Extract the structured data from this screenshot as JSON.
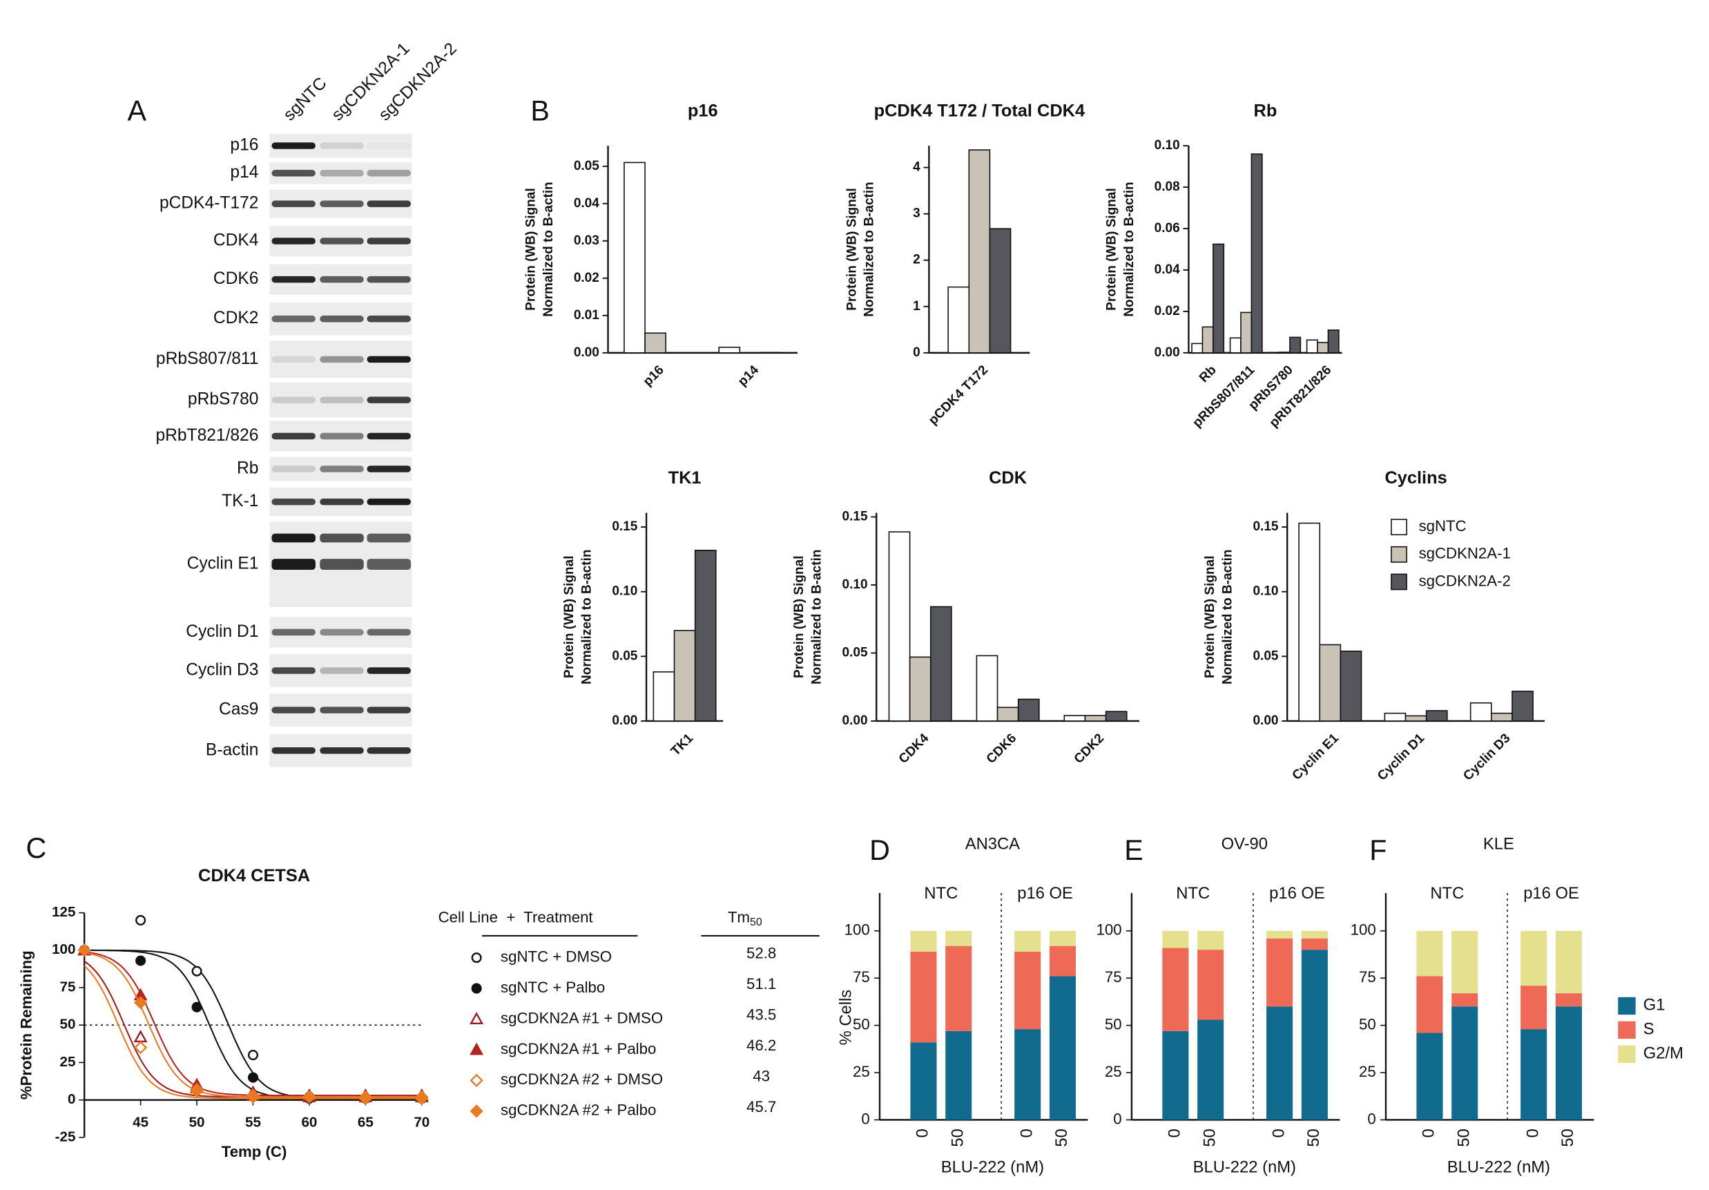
{
  "panel_labels": [
    "A",
    "B",
    "C",
    "D",
    "E",
    "F"
  ],
  "blot": {
    "lanes": [
      "sgNTC",
      "sgCDKN2A-1",
      "sgCDKN2A-2"
    ],
    "proteins": [
      "p16",
      "p14",
      "pCDK4-T172",
      "CDK4",
      "CDK6",
      "CDK2",
      "pRbS807/811",
      "pRbS780",
      "pRbT821/826",
      "Rb",
      "TK-1",
      "Cyclin E1",
      "Cyclin D1",
      "Cyclin D3",
      "Cas9",
      "B-actin"
    ]
  },
  "chart_data": [
    {
      "type": "bar",
      "title": "p16",
      "ylabel": [
        "Protein (WB) Signal",
        "Normalized to B-actin"
      ],
      "categories": [
        "p16",
        "p14"
      ],
      "series": [
        {
          "color": "#ffffff",
          "values": [
            0.051,
            0.0015
          ]
        },
        {
          "color": "#c9c2b7",
          "values": [
            0.0053,
            0
          ]
        },
        {
          "color": "#55575c",
          "values": [
            0,
            0.0001
          ]
        }
      ],
      "ylim": [
        0,
        0.0555
      ],
      "yticks": [
        {
          "value": 0,
          "label": "0.00"
        },
        {
          "value": 0.01,
          "label": "0.01"
        },
        {
          "value": 0.02,
          "label": "0.02"
        },
        {
          "value": 0.03,
          "label": "0.03"
        },
        {
          "value": 0.04,
          "label": "0.04"
        },
        {
          "value": 0.05,
          "label": "0.05"
        }
      ]
    },
    {
      "type": "bar",
      "title": "pCDK4 T172 / Total CDK4",
      "ylabel": [
        "Protein (WB) Signal",
        "Normalized to B-actin"
      ],
      "categories": [
        "pCDK4 T172"
      ],
      "series": [
        {
          "color": "#ffffff",
          "values": [
            1.42
          ]
        },
        {
          "color": "#c9c2b7",
          "values": [
            4.38
          ]
        },
        {
          "color": "#55575c",
          "values": [
            2.68
          ]
        }
      ],
      "ylim": [
        0,
        4.47
      ],
      "yticks": [
        0,
        1,
        2,
        3,
        4
      ]
    },
    {
      "type": "bar",
      "title": "Rb",
      "ylabel": [
        "Protein (WB) Signal",
        "Normalized to B-actin"
      ],
      "categories": [
        "Rb",
        "pRbS807/811",
        "pRbS780",
        "pRbT821/826"
      ],
      "series": [
        {
          "color": "#ffffff",
          "values": [
            0.0045,
            0.0072,
            0.0002,
            0.0062
          ]
        },
        {
          "color": "#c9c2b7",
          "values": [
            0.0125,
            0.0195,
            0.0003,
            0.005
          ]
        },
        {
          "color": "#55575c",
          "values": [
            0.0525,
            0.096,
            0.0075,
            0.011
          ]
        }
      ],
      "ylim": [
        0,
        0.1
      ],
      "yticks": [
        {
          "value": 0,
          "label": "0.00"
        },
        {
          "value": 0.02,
          "label": "0.02"
        },
        {
          "value": 0.04,
          "label": "0.04"
        },
        {
          "value": 0.06,
          "label": "0.06"
        },
        {
          "value": 0.08,
          "label": "0.08"
        },
        {
          "value": 0.1,
          "label": "0.10"
        }
      ]
    },
    {
      "type": "bar",
      "title": "TK1",
      "ylabel": [
        "Protein (WB) Signal",
        "Normalized to B-actin"
      ],
      "categories": [
        "TK1"
      ],
      "series": [
        {
          "color": "#ffffff",
          "values": [
            0.038
          ]
        },
        {
          "color": "#c9c2b7",
          "values": [
            0.07
          ]
        },
        {
          "color": "#55575c",
          "values": [
            0.132
          ]
        }
      ],
      "ylim": [
        0,
        0.161
      ],
      "yticks": [
        {
          "value": 0,
          "label": "0.00"
        },
        {
          "value": 0.05,
          "label": "0.05"
        },
        {
          "value": 0.1,
          "label": "0.10"
        },
        {
          "value": 0.15,
          "label": "0.15"
        }
      ]
    },
    {
      "type": "bar",
      "title": "CDK",
      "ylabel": [
        "Protein (WB) Signal",
        "Normalized to B-actin"
      ],
      "categories": [
        "CDK4",
        "CDK6",
        "CDK2"
      ],
      "series": [
        {
          "color": "#ffffff",
          "values": [
            0.139,
            0.048,
            0.004
          ]
        },
        {
          "color": "#c9c2b7",
          "values": [
            0.047,
            0.01,
            0.004
          ]
        },
        {
          "color": "#55575c",
          "values": [
            0.084,
            0.016,
            0.007
          ]
        }
      ],
      "ylim": [
        0,
        0.153
      ],
      "yticks": [
        {
          "value": 0,
          "label": "0.00"
        },
        {
          "value": 0.05,
          "label": "0.05"
        },
        {
          "value": 0.1,
          "label": "0.10"
        },
        {
          "value": 0.15,
          "label": "0.15"
        }
      ]
    },
    {
      "type": "bar",
      "title": "Cyclins",
      "ylabel": [
        "Protein (WB) Signal",
        "Normalized to B-actin"
      ],
      "categories": [
        "Cyclin E1",
        "Cyclin D1",
        "Cyclin D3"
      ],
      "legend": "upper right",
      "series": [
        {
          "name": "sgNTC",
          "color": "#ffffff",
          "values": [
            0.153,
            0.006,
            0.014
          ]
        },
        {
          "name": "sgCDKN2A-1",
          "color": "#c9c2b7",
          "values": [
            0.059,
            0.004,
            0.006
          ]
        },
        {
          "name": "sgCDKN2A-2",
          "color": "#55575c",
          "values": [
            0.054,
            0.008,
            0.023
          ]
        }
      ],
      "ylim": [
        0,
        0.161
      ],
      "yticks": [
        {
          "value": 0,
          "label": "0.00"
        },
        {
          "value": 0.05,
          "label": "0.05"
        },
        {
          "value": 0.1,
          "label": "0.10"
        },
        {
          "value": 0.15,
          "label": "0.15"
        }
      ]
    },
    {
      "type": "line",
      "title": "CDK4 CETSA",
      "xlabel": "Temp (C)",
      "ylabel": "%Protein Remaining",
      "x": [
        40,
        45,
        50,
        55,
        60,
        65,
        70
      ],
      "xlim": [
        40,
        70
      ],
      "xticks": [
        45,
        50,
        55,
        60,
        65,
        70
      ],
      "ylim": [
        -25,
        125
      ],
      "yticks": [
        125,
        100,
        75,
        50,
        25,
        0,
        -25
      ],
      "hline": 50,
      "legend_header": "Cell Line  +  Treatment",
      "tm_header": "Tm",
      "tm_header_sub": "50",
      "series": [
        {
          "name": "sgNTC + DMSO",
          "color": "#111111",
          "marker": "circle",
          "filled": false,
          "values": [
            100,
            120,
            86,
            30,
            2,
            1,
            1
          ],
          "tm50": 52.8
        },
        {
          "name": "sgNTC + Palbo",
          "color": "#111111",
          "marker": "circle",
          "filled": true,
          "values": [
            100,
            93,
            62,
            15,
            1,
            1,
            1
          ],
          "tm50": 51.1
        },
        {
          "name": "sgCDKN2A #1 + DMSO",
          "color": "#9e1c1c",
          "marker": "triangle",
          "filled": false,
          "values": [
            100,
            42,
            8,
            3,
            2,
            2,
            2
          ],
          "tm50": 43.5
        },
        {
          "name": "sgCDKN2A #1 + Palbo",
          "color": "#b3231f",
          "marker": "triangle",
          "filled": true,
          "values": [
            100,
            70,
            10,
            5,
            3,
            3,
            3
          ],
          "tm50": 46.2
        },
        {
          "name": "sgCDKN2A #2 + DMSO",
          "color": "#ea7a22",
          "marker": "diamond",
          "filled": false,
          "values": [
            100,
            35,
            7,
            2,
            2,
            1,
            1
          ],
          "tm50": 43.0
        },
        {
          "name": "sgCDKN2A #2 + Palbo",
          "color": "#ea7a22",
          "marker": "diamond",
          "filled": true,
          "values": [
            100,
            65,
            6,
            3,
            2,
            2,
            2
          ],
          "tm50": 45.7
        }
      ]
    },
    {
      "type": "stacked_bar",
      "title": "AN3CA",
      "ylabel": "% Cells",
      "xlabel": "BLU-222 (nM)",
      "groups": [
        "NTC",
        "p16 OE"
      ],
      "categories": [
        "0",
        "50",
        "0",
        "50"
      ],
      "ylim": [
        0,
        120
      ],
      "yticks": [
        0,
        25,
        50,
        75,
        100
      ],
      "series": [
        {
          "color": "#106b8e",
          "values": [
            41,
            47,
            48,
            76
          ]
        },
        {
          "color": "#ee6a56",
          "values": [
            48,
            45,
            41,
            16
          ]
        },
        {
          "color": "#e4e08e",
          "values": [
            11,
            8,
            11,
            8
          ]
        }
      ]
    },
    {
      "type": "stacked_bar",
      "title": "OV-90",
      "xlabel": "BLU-222 (nM)",
      "groups": [
        "NTC",
        "p16 OE"
      ],
      "categories": [
        "0",
        "50",
        "0",
        "50"
      ],
      "ylim": [
        0,
        120
      ],
      "yticks": [
        0,
        25,
        50,
        75,
        100
      ],
      "series": [
        {
          "color": "#106b8e",
          "values": [
            47,
            53,
            60,
            90
          ]
        },
        {
          "color": "#ee6a56",
          "values": [
            44,
            37,
            36,
            6
          ]
        },
        {
          "color": "#e4e08e",
          "values": [
            9,
            10,
            4,
            4
          ]
        }
      ]
    },
    {
      "type": "stacked_bar",
      "title": "KLE",
      "xlabel": "BLU-222 (nM)",
      "groups": [
        "NTC",
        "p16 OE"
      ],
      "categories": [
        "0",
        "50",
        "0",
        "50"
      ],
      "legend": "right",
      "ylim": [
        0,
        120
      ],
      "yticks": [
        0,
        25,
        50,
        75,
        100
      ],
      "series": [
        {
          "name": "G1",
          "color": "#106b8e",
          "values": [
            46,
            60,
            48,
            60
          ]
        },
        {
          "name": "S",
          "color": "#ee6a56",
          "values": [
            30,
            7,
            23,
            7
          ]
        },
        {
          "name": "G2/M",
          "color": "#e4e08e",
          "values": [
            24,
            33,
            29,
            33
          ]
        }
      ]
    }
  ]
}
